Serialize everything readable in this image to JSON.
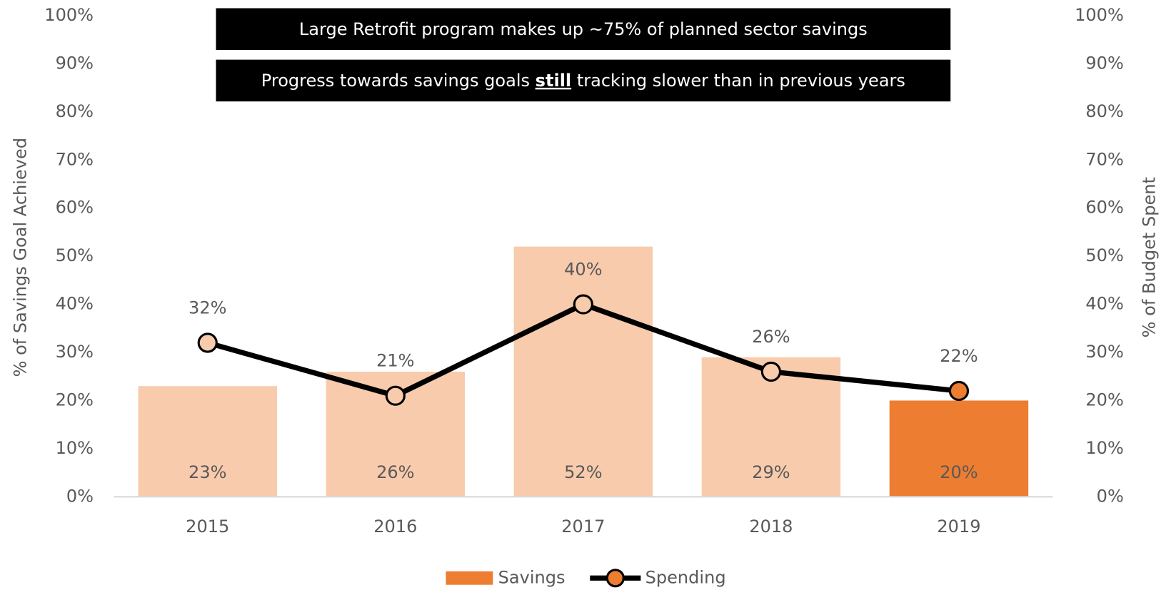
{
  "chart_data": {
    "type": "bar_line",
    "annotations": [
      {
        "parts": [
          "Large Retrofit program makes up ~75% of planned sector savings"
        ]
      },
      {
        "parts": [
          "Progress towards savings goals ",
          "still",
          " tracking slower than in previous years"
        ]
      }
    ],
    "y_label": "% of Savings Goal Achieved",
    "y2_label": "% of Budget Spent",
    "categories": [
      "2015",
      "2016",
      "2017",
      "2018",
      "2019"
    ],
    "series": [
      {
        "name": "Savings",
        "type": "bar",
        "color": "#ED7D31",
        "colors": [
          "#F8CBAD",
          "#F8CBAD",
          "#F8CBAD",
          "#F8CBAD",
          "#ED7D31"
        ],
        "values": [
          23,
          26,
          52,
          29,
          20
        ],
        "value_labels": [
          "23%",
          "26%",
          "52%",
          "29%",
          "20%"
        ]
      },
      {
        "name": "Spending",
        "type": "line",
        "axis": "y2",
        "color": "#000000",
        "marker_colors": [
          "#F8CBAD",
          "#F8CBAD",
          "#F8CBAD",
          "#F8CBAD",
          "#ED7D31"
        ],
        "values": [
          32,
          21,
          40,
          26,
          22
        ],
        "value_labels": [
          "32%",
          "21%",
          "40%",
          "26%",
          "22%"
        ]
      }
    ],
    "ylim": [
      0,
      100
    ],
    "yticks": [
      {
        "value": 0,
        "label": "0%"
      },
      {
        "value": 10,
        "label": "10%"
      },
      {
        "value": 20,
        "label": "20%"
      },
      {
        "value": 30,
        "label": "30%"
      },
      {
        "value": 40,
        "label": "40%"
      },
      {
        "value": 50,
        "label": "50%"
      },
      {
        "value": 60,
        "label": "60%"
      },
      {
        "value": 70,
        "label": "70%"
      },
      {
        "value": 80,
        "label": "80%"
      },
      {
        "value": 90,
        "label": "90%"
      },
      {
        "value": 100,
        "label": "100%"
      }
    ],
    "y2lim": [
      0,
      100
    ],
    "y2ticks": [
      {
        "value": 0,
        "label": "0%"
      },
      {
        "value": 10,
        "label": "10%"
      },
      {
        "value": 20,
        "label": "20%"
      },
      {
        "value": 30,
        "label": "30%"
      },
      {
        "value": 40,
        "label": "40%"
      },
      {
        "value": 50,
        "label": "50%"
      },
      {
        "value": 60,
        "label": "60%"
      },
      {
        "value": 70,
        "label": "70%"
      },
      {
        "value": 80,
        "label": "80%"
      },
      {
        "value": 90,
        "label": "90%"
      },
      {
        "value": 100,
        "label": "100%"
      }
    ],
    "grid": false,
    "legend": "bottom"
  }
}
